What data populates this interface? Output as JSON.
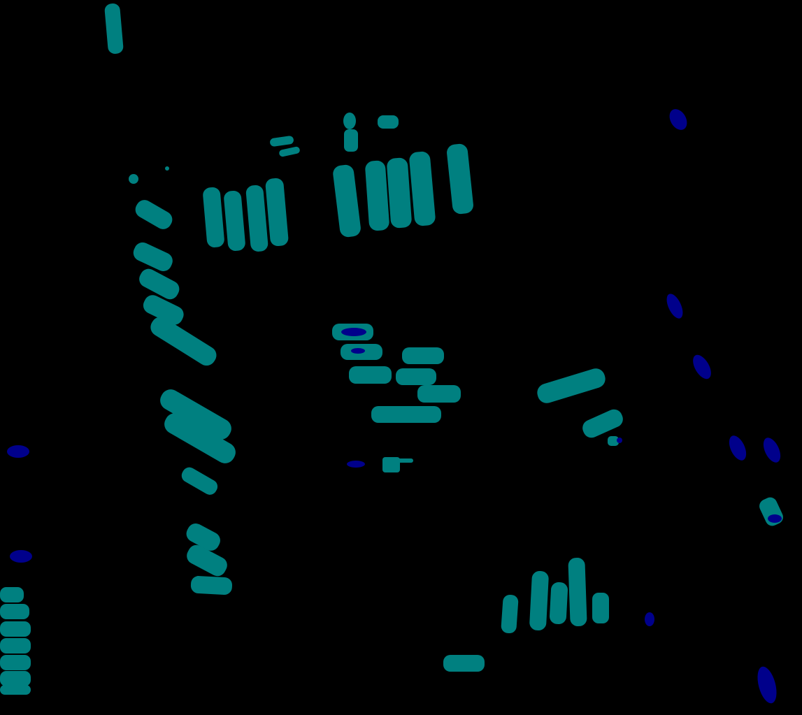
{
  "image": {
    "kind": "segmentation-mask",
    "background_color": "#000000"
  },
  "classes": [
    {
      "name": "teal",
      "color": "#008080"
    },
    {
      "name": "navy",
      "color": "#00008b"
    }
  ]
}
